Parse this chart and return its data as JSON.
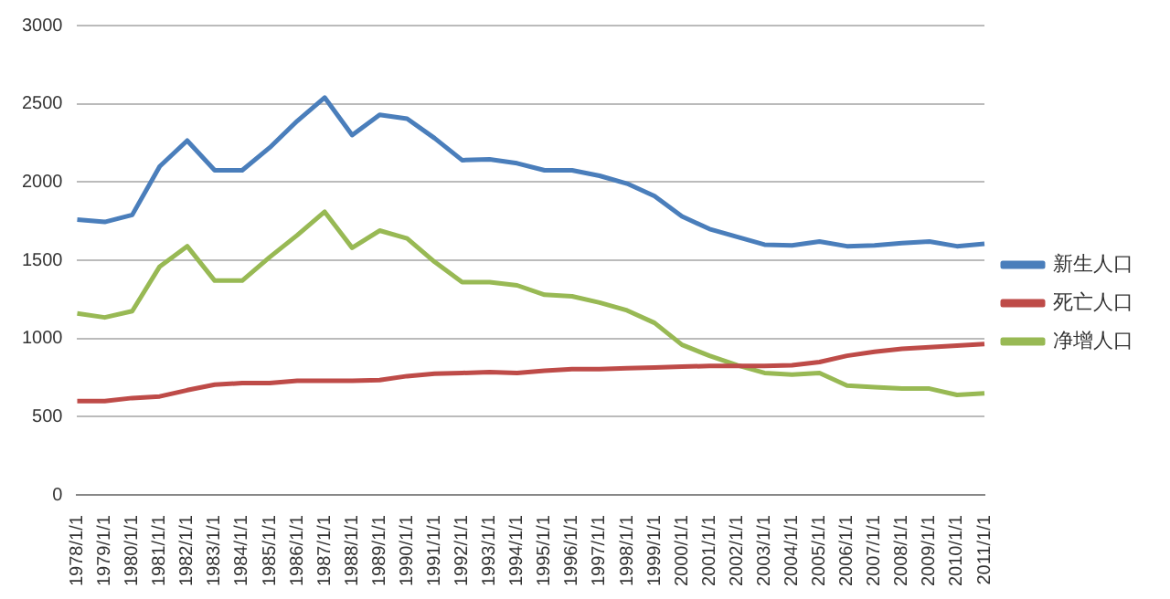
{
  "chart_data": {
    "type": "line",
    "categories": [
      "1978/1/1",
      "1979/1/1",
      "1980/1/1",
      "1981/1/1",
      "1982/1/1",
      "1983/1/1",
      "1984/1/1",
      "1985/1/1",
      "1986/1/1",
      "1987/1/1",
      "1988/1/1",
      "1989/1/1",
      "1990/1/1",
      "1991/1/1",
      "1992/1/1",
      "1993/1/1",
      "1994/1/1",
      "1995/1/1",
      "1996/1/1",
      "1997/1/1",
      "1998/1/1",
      "1999/1/1",
      "2000/1/1",
      "2001/1/1",
      "2002/1/1",
      "2003/1/1",
      "2004/1/1",
      "2005/1/1",
      "2006/1/1",
      "2007/1/1",
      "2008/1/1",
      "2009/1/1",
      "2010/1/1",
      "2011/1/1"
    ],
    "series": [
      {
        "name": "新生人口",
        "color": "#4a7ebb",
        "values": [
          1760,
          1745,
          1790,
          2100,
          2265,
          2075,
          2075,
          2220,
          2390,
          2540,
          2300,
          2430,
          2405,
          2280,
          2140,
          2145,
          2120,
          2075,
          2075,
          2040,
          1990,
          1910,
          1780,
          1700,
          1650,
          1600,
          1595,
          1620,
          1590,
          1595,
          1610,
          1620,
          1590,
          1605
        ]
      },
      {
        "name": "死亡人口",
        "color": "#be4b48",
        "values": [
          600,
          600,
          620,
          630,
          670,
          705,
          715,
          715,
          730,
          730,
          730,
          735,
          760,
          775,
          780,
          785,
          780,
          795,
          805,
          805,
          810,
          815,
          820,
          825,
          825,
          825,
          830,
          850,
          890,
          915,
          935,
          945,
          955,
          965
        ]
      },
      {
        "name": "净增人口",
        "color": "#98b954",
        "values": [
          1160,
          1135,
          1175,
          1460,
          1590,
          1370,
          1370,
          1520,
          1660,
          1810,
          1580,
          1690,
          1640,
          1490,
          1360,
          1360,
          1340,
          1280,
          1270,
          1230,
          1180,
          1100,
          960,
          890,
          830,
          780,
          770,
          780,
          700,
          690,
          680,
          680,
          640,
          650
        ]
      }
    ],
    "ylim": [
      0,
      3000
    ],
    "yticks": [
      0,
      500,
      1000,
      1500,
      2000,
      2500,
      3000
    ],
    "grid": "y",
    "legend": "right",
    "marker": "none",
    "line_style": "solid"
  }
}
